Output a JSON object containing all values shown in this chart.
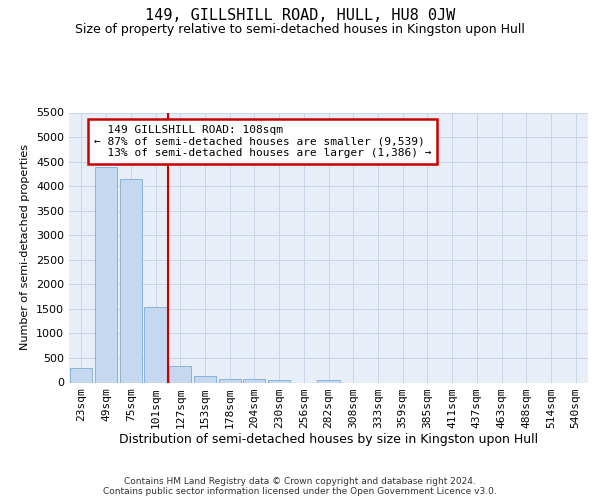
{
  "title": "149, GILLSHILL ROAD, HULL, HU8 0JW",
  "subtitle": "Size of property relative to semi-detached houses in Kingston upon Hull",
  "xlabel": "Distribution of semi-detached houses by size in Kingston upon Hull",
  "ylabel": "Number of semi-detached properties",
  "footnote": "Contains HM Land Registry data © Crown copyright and database right 2024.\nContains public sector information licensed under the Open Government Licence v3.0.",
  "categories": [
    "23sqm",
    "49sqm",
    "75sqm",
    "101sqm",
    "127sqm",
    "153sqm",
    "178sqm",
    "204sqm",
    "230sqm",
    "256sqm",
    "282sqm",
    "308sqm",
    "333sqm",
    "359sqm",
    "385sqm",
    "411sqm",
    "437sqm",
    "463sqm",
    "488sqm",
    "514sqm",
    "540sqm"
  ],
  "values": [
    290,
    4400,
    4150,
    1530,
    330,
    140,
    75,
    70,
    60,
    0,
    60,
    0,
    0,
    0,
    0,
    0,
    0,
    0,
    0,
    0,
    0
  ],
  "bar_color": "#c5d8f0",
  "bar_edge_color": "#7aadd4",
  "vline_x": 3.5,
  "marker_label": "149 GILLSHILL ROAD: 108sqm",
  "pct_smaller": "87%",
  "n_smaller": "9,539",
  "pct_larger": "13%",
  "n_larger": "1,386",
  "annotation_box_color": "#cc0000",
  "vline_color": "#cc0000",
  "ylim": [
    0,
    5500
  ],
  "yticks": [
    0,
    500,
    1000,
    1500,
    2000,
    2500,
    3000,
    3500,
    4000,
    4500,
    5000,
    5500
  ],
  "grid_color": "#c8d4e8",
  "background_color": "#e8eef8",
  "title_fontsize": 11,
  "subtitle_fontsize": 9,
  "xlabel_fontsize": 9,
  "ylabel_fontsize": 8,
  "tick_fontsize": 8,
  "annot_fontsize": 8,
  "footnote_fontsize": 6.5
}
